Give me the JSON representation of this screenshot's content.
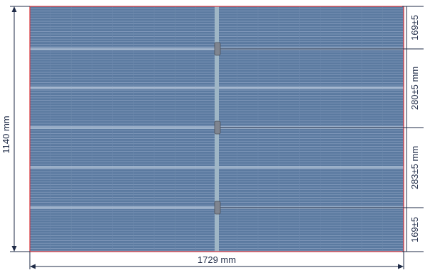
{
  "diagram": {
    "width_label": "1729 mm",
    "height_label": "1140 mm",
    "spacing_labels": [
      "169±5",
      "280±5 mm",
      "283±5 mm",
      "169±5"
    ]
  },
  "colors": {
    "panel_fill": "#5b7aa0",
    "cell_line": "#8aa0bf",
    "outline": "#d9363e",
    "dimension": "#1f2b47",
    "junction_box": "#7f8590",
    "center_strip": "#9fb6c6"
  }
}
